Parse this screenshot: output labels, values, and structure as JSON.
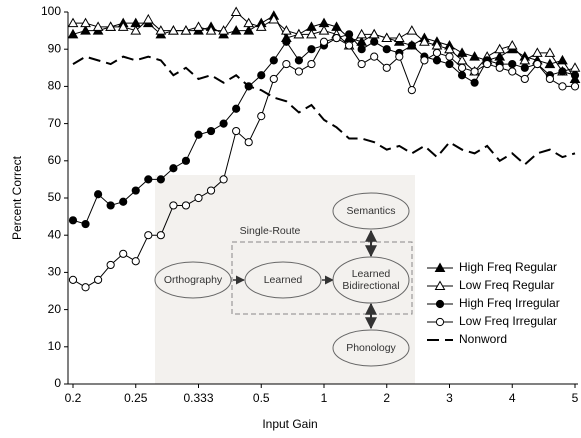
{
  "chart_data": {
    "type": "line",
    "xlabel": "Input Gain",
    "ylabel": "Percent Correct",
    "categories": [
      "0.2",
      null,
      null,
      null,
      null,
      "0.25",
      null,
      null,
      null,
      null,
      "0.333",
      null,
      null,
      null,
      null,
      "0.5",
      null,
      null,
      null,
      null,
      "1",
      null,
      null,
      null,
      null,
      "2",
      null,
      null,
      null,
      null,
      "3",
      null,
      null,
      null,
      null,
      "4",
      null,
      null,
      null,
      null,
      "5"
    ],
    "ylim": [
      0,
      100
    ],
    "yticks": [
      0,
      10,
      20,
      30,
      40,
      50,
      60,
      70,
      80,
      90,
      100
    ],
    "grid": false,
    "legend": "right",
    "series": [
      {
        "name": "High Freq Regular",
        "color": "#000000",
        "marker": "triangle",
        "filled": true,
        "dashed": false,
        "values": [
          94,
          95,
          95,
          96,
          97,
          97,
          97,
          94,
          95,
          95,
          95,
          96,
          94,
          95,
          95,
          97,
          99,
          93,
          94,
          96,
          97,
          96,
          93,
          92,
          94,
          93,
          92,
          91,
          93,
          92,
          91,
          89,
          88,
          87,
          88,
          90,
          88,
          87,
          86,
          87,
          82
        ]
      },
      {
        "name": "Low Freq Regular",
        "color": "#000000",
        "marker": "triangle",
        "filled": false,
        "dashed": false,
        "values": [
          97,
          97,
          96,
          96,
          96,
          95,
          98,
          95,
          95,
          95,
          96,
          95,
          95,
          100,
          97,
          96,
          98,
          95,
          94,
          94,
          95,
          94,
          91,
          94,
          94,
          93,
          93,
          95,
          92,
          91,
          90,
          87,
          84,
          88,
          90,
          91,
          87,
          89,
          89,
          84,
          85
        ]
      },
      {
        "name": "High Freq Irregular",
        "color": "#000000",
        "marker": "circle",
        "filled": true,
        "dashed": false,
        "values": [
          44,
          43,
          51,
          48,
          49,
          52,
          55,
          55,
          58,
          60,
          67,
          68,
          70,
          74,
          80,
          83,
          87,
          92,
          87,
          90,
          91,
          93,
          94,
          90,
          92,
          90,
          89,
          91,
          88,
          87,
          86,
          83,
          81,
          87,
          86,
          86,
          85,
          86,
          83,
          84,
          83
        ]
      },
      {
        "name": "Low Freq Irregular",
        "color": "#000000",
        "marker": "circle",
        "filled": false,
        "dashed": false,
        "values": [
          28,
          26,
          28,
          32,
          35,
          33,
          40,
          40,
          48,
          48,
          50,
          52,
          55,
          68,
          65,
          72,
          82,
          86,
          84,
          86,
          92,
          93,
          91,
          86,
          88,
          85,
          88,
          79,
          87,
          89,
          88,
          85,
          84,
          86,
          85,
          84,
          82,
          86,
          82,
          80,
          80
        ]
      },
      {
        "name": "Nonword",
        "color": "#000000",
        "marker": null,
        "filled": false,
        "dashed": true,
        "values": [
          86,
          88,
          87,
          86,
          88,
          87,
          88,
          87,
          83,
          85,
          82,
          83,
          81,
          83,
          80,
          79,
          77,
          76,
          73,
          75,
          71,
          69,
          66,
          66,
          65,
          63,
          64,
          62,
          64,
          61,
          65,
          63,
          62,
          64,
          60,
          62,
          59,
          62,
          63,
          61,
          62
        ]
      }
    ]
  },
  "diagram": {
    "group_label": "Single-Route",
    "nodes": [
      {
        "lines": [
          "Semantics"
        ]
      },
      {
        "lines": [
          "Orthography"
        ]
      },
      {
        "lines": [
          "Learned"
        ]
      },
      {
        "lines": [
          "Learned",
          "Bidirectional"
        ]
      },
      {
        "lines": [
          "Phonology"
        ]
      }
    ]
  }
}
